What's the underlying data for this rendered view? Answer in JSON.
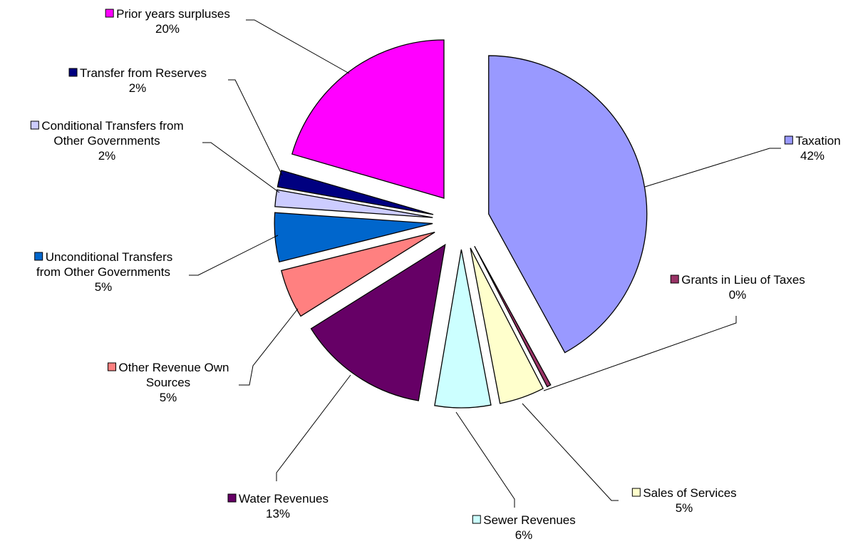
{
  "chart_data": {
    "type": "pie",
    "title": "",
    "exploded": true,
    "legend": "none",
    "slices": [
      {
        "name": "Taxation",
        "label": [
          "Taxation"
        ],
        "percent_label": "42%",
        "value": 42.0,
        "color": "#9999FF"
      },
      {
        "name": "Grants in Lieu of Taxes",
        "label": [
          "Grants in Lieu of Taxes"
        ],
        "percent_label": "0%",
        "value": 0.4,
        "color": "#993366"
      },
      {
        "name": "Sales of Services",
        "label": [
          "Sales of Services"
        ],
        "percent_label": "5%",
        "value": 4.6,
        "color": "#FFFFCC"
      },
      {
        "name": "Sewer Revenues",
        "label": [
          "Sewer Revenues"
        ],
        "percent_label": "6%",
        "value": 5.7,
        "color": "#CCFFFF"
      },
      {
        "name": "Water Revenues",
        "label": [
          "Water Revenues"
        ],
        "percent_label": "13%",
        "value": 13.4,
        "color": "#660066"
      },
      {
        "name": "Other Revenue Own Sources",
        "label": [
          "Other Revenue Own",
          "Sources"
        ],
        "percent_label": "5%",
        "value": 5.0,
        "color": "#FF8080"
      },
      {
        "name": "Unconditional Transfers from Other Governments",
        "label": [
          "Unconditional Transfers",
          "from Other Governments"
        ],
        "percent_label": "5%",
        "value": 5.0,
        "color": "#0066CC"
      },
      {
        "name": "Conditional Transfers from Other Governments",
        "label": [
          "Conditional Transfers from",
          "Other Governments"
        ],
        "percent_label": "2%",
        "value": 1.7,
        "color": "#CCCCFF"
      },
      {
        "name": "Transfer from Reserves",
        "label": [
          "Transfer from Reserves"
        ],
        "percent_label": "2%",
        "value": 1.7,
        "color": "#000080"
      },
      {
        "name": "Prior years surpluses",
        "label": [
          "Prior years surpluses"
        ],
        "percent_label": "20%",
        "value": 20.5,
        "color": "#FF00FF"
      }
    ]
  }
}
